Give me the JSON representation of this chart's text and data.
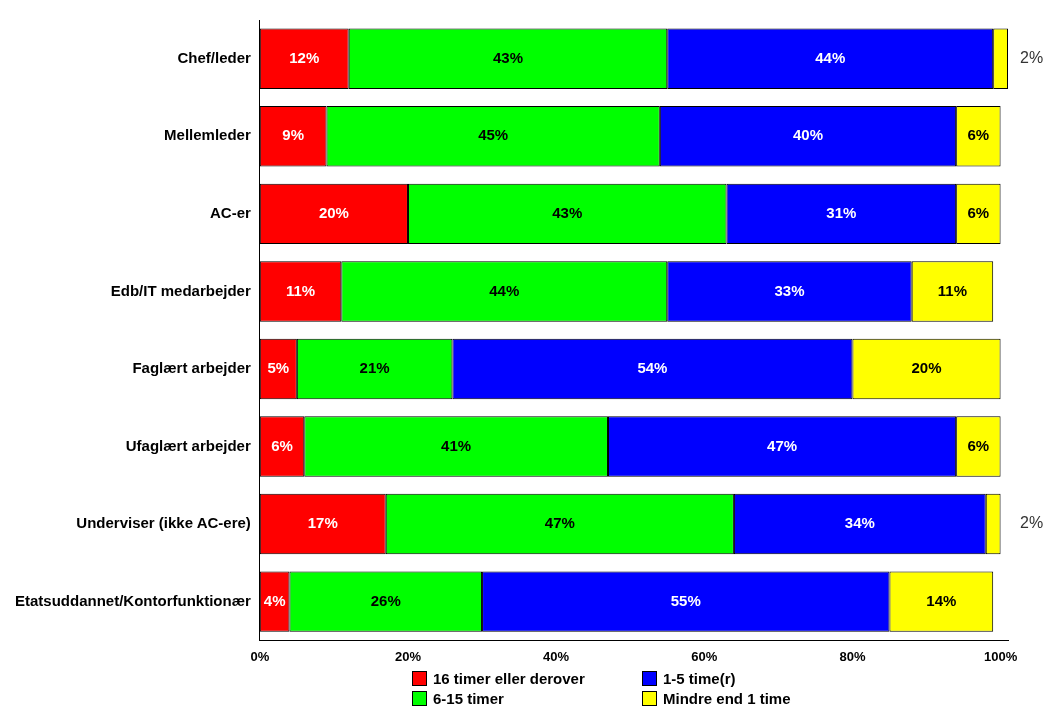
{
  "chart_data": {
    "type": "bar",
    "orientation": "horizontal",
    "stacked": true,
    "categories": [
      "Chef/leder",
      "Mellemleder",
      "AC-er",
      "Edb/IT medarbejder",
      "Faglært arbejder",
      "Ufaglært arbejder",
      "Underviser (ikke AC-ere)",
      "Etatsuddannet/Kontorfunktionær"
    ],
    "series": [
      {
        "name": "16 timer eller derover",
        "color": "#ff0000",
        "values": [
          12,
          9,
          20,
          11,
          5,
          6,
          17,
          4
        ],
        "value_labels": [
          "12%",
          "9%",
          "20%",
          "11%",
          "5%",
          "6%",
          "17%",
          "4%"
        ]
      },
      {
        "name": "6-15 timer",
        "color": "#00ff00",
        "values": [
          43,
          45,
          43,
          44,
          21,
          41,
          47,
          26
        ],
        "value_labels": [
          "43%",
          "45%",
          "43%",
          "44%",
          "21%",
          "41%",
          "47%",
          "26%"
        ]
      },
      {
        "name": "1-5 time(r)",
        "color": "#0000ff",
        "values": [
          44,
          40,
          31,
          33,
          54,
          47,
          34,
          55
        ],
        "value_labels": [
          "44%",
          "40%",
          "31%",
          "33%",
          "54%",
          "47%",
          "34%",
          "55%"
        ]
      },
      {
        "name": "Mindre end 1 time",
        "color": "#ffff00",
        "values": [
          2,
          6,
          6,
          11,
          20,
          6,
          2,
          14
        ],
        "value_labels": [
          "2%",
          "6%",
          "6%",
          "11%",
          "20%",
          "6%",
          "2%",
          "14%"
        ]
      }
    ],
    "xlim": [
      0,
      101
    ],
    "xticks": [
      {
        "value": 0,
        "label": "0%"
      },
      {
        "value": 20,
        "label": "20%"
      },
      {
        "value": 40,
        "label": "40%"
      },
      {
        "value": 60,
        "label": "60%"
      },
      {
        "value": 80,
        "label": "80%"
      },
      {
        "value": 100,
        "label": "100%"
      }
    ],
    "grid": false,
    "legend": "bottom"
  }
}
